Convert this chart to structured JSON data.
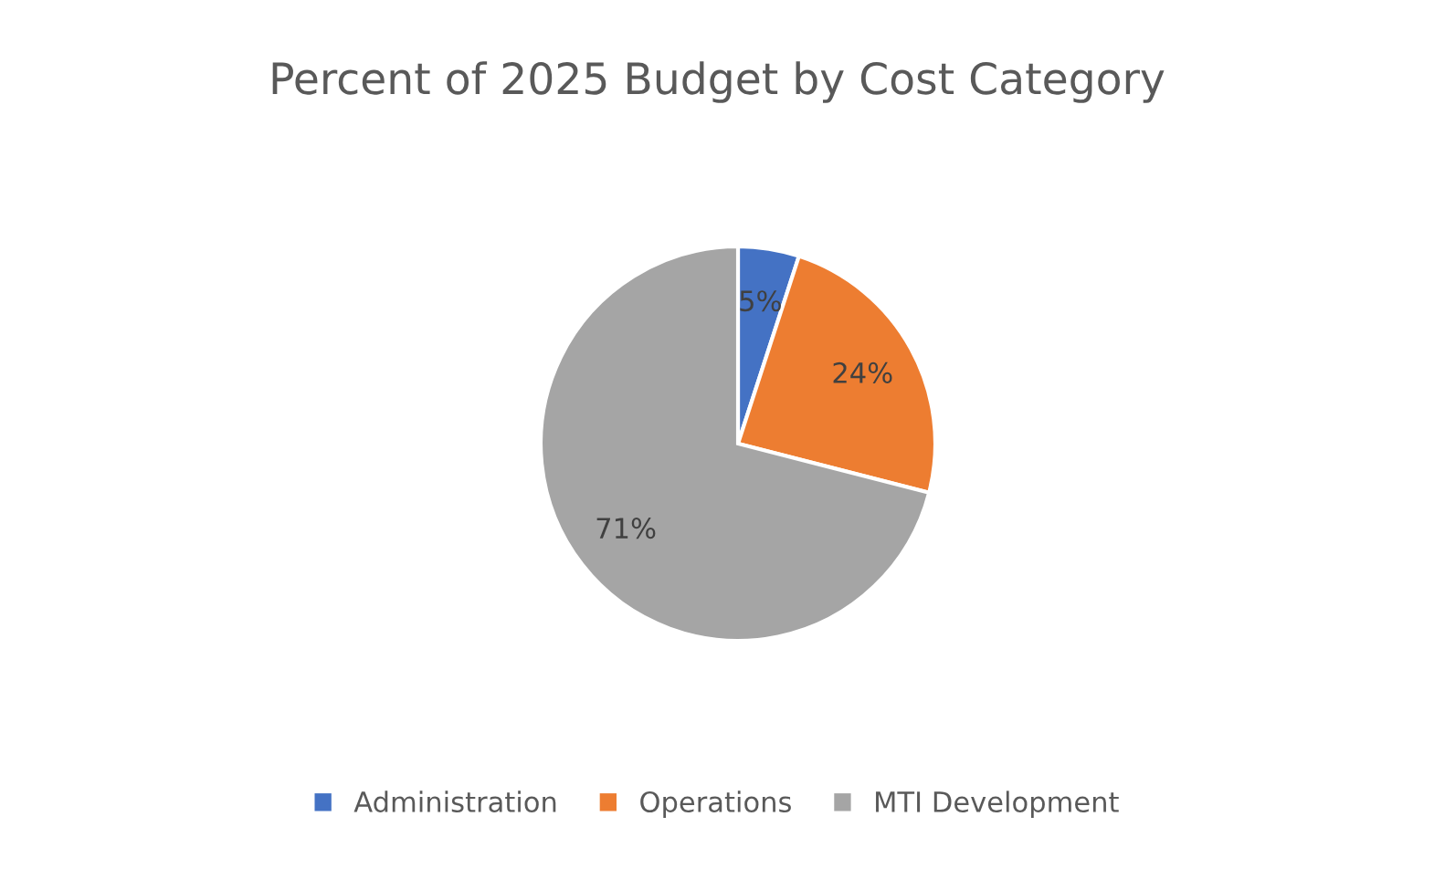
{
  "chart_data": {
    "type": "pie",
    "title": "Percent of 2025 Budget by Cost Category",
    "categories": [
      "Administration",
      "Operations",
      "MTI Development"
    ],
    "values": [
      5,
      24,
      71
    ],
    "colors": [
      "#4472c4",
      "#ed7d31",
      "#a5a5a5"
    ],
    "value_labels": [
      "5%",
      "24%",
      "71%"
    ],
    "legend": "bottom"
  }
}
